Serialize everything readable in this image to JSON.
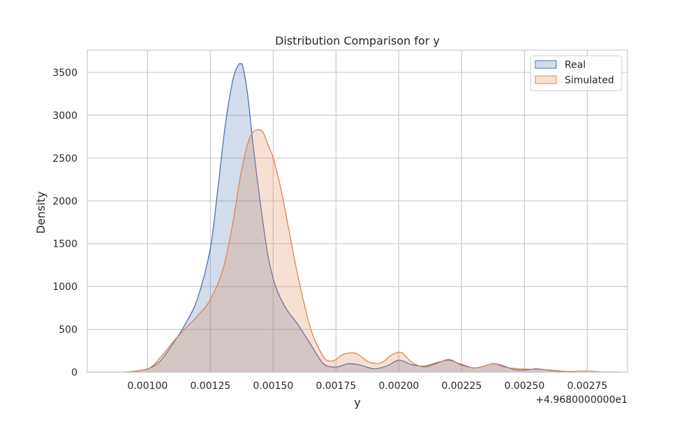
{
  "chart_data": {
    "type": "area",
    "title": "Distribution Comparison for y",
    "xlabel": "y",
    "ylabel": "Density",
    "x_offset_label": "+4.9680000000e1",
    "xlim": [
      0.00076,
      0.00291
    ],
    "ylim": [
      0,
      3760
    ],
    "x_ticks": [
      0.001,
      0.00125,
      0.0015,
      0.00175,
      0.002,
      0.00225,
      0.0025,
      0.00275
    ],
    "x_tick_labels": [
      "0.00100",
      "0.00125",
      "0.00150",
      "0.00175",
      "0.00200",
      "0.00225",
      "0.00250",
      "0.00275"
    ],
    "y_ticks": [
      0,
      500,
      1000,
      1500,
      2000,
      2500,
      3000,
      3500
    ],
    "y_tick_labels": [
      "0",
      "500",
      "1000",
      "1500",
      "2000",
      "2500",
      "3000",
      "3500"
    ],
    "grid": true,
    "legend_position": "top-right",
    "series": [
      {
        "name": "Real",
        "color": "#4c72b0",
        "fill": "#4c72b0",
        "x": [
          0.00092,
          0.001,
          0.00105,
          0.0011,
          0.00115,
          0.0012,
          0.00125,
          0.00128,
          0.00131,
          0.00134,
          0.00136,
          0.00137,
          0.00138,
          0.0014,
          0.00142,
          0.00145,
          0.00148,
          0.00151,
          0.00155,
          0.0016,
          0.00165,
          0.0017,
          0.00175,
          0.0018,
          0.00185,
          0.0019,
          0.00195,
          0.002,
          0.00205,
          0.0021,
          0.00215,
          0.0022,
          0.00225,
          0.0023,
          0.00235,
          0.00238,
          0.00242,
          0.00246,
          0.0025,
          0.00255,
          0.0026,
          0.00265,
          0.0027
        ],
        "y": [
          0,
          40,
          130,
          330,
          560,
          870,
          1450,
          2150,
          2900,
          3420,
          3580,
          3600,
          3560,
          3200,
          2650,
          1950,
          1350,
          1000,
          750,
          550,
          320,
          100,
          60,
          100,
          80,
          40,
          70,
          140,
          90,
          70,
          110,
          140,
          90,
          50,
          80,
          100,
          70,
          30,
          25,
          40,
          20,
          5,
          0
        ]
      },
      {
        "name": "Simulated",
        "color": "#dd8452",
        "fill": "#dd8452",
        "x": [
          0.0009,
          0.001,
          0.00105,
          0.0011,
          0.00115,
          0.0012,
          0.00125,
          0.0013,
          0.00134,
          0.00137,
          0.0014,
          0.00142,
          0.00144,
          0.00146,
          0.00148,
          0.0015,
          0.00153,
          0.00156,
          0.0016,
          0.00165,
          0.0017,
          0.00173,
          0.00175,
          0.00178,
          0.00183,
          0.00188,
          0.00193,
          0.00197,
          0.00201,
          0.00205,
          0.0021,
          0.00215,
          0.0022,
          0.00225,
          0.0023,
          0.00235,
          0.00238,
          0.00242,
          0.00248,
          0.00253,
          0.00258,
          0.00262,
          0.00268,
          0.00275,
          0.0028,
          0.00288
        ],
        "y": [
          0,
          40,
          170,
          350,
          510,
          660,
          850,
          1200,
          1750,
          2300,
          2680,
          2800,
          2830,
          2800,
          2650,
          2500,
          2150,
          1700,
          1100,
          500,
          180,
          130,
          150,
          210,
          220,
          120,
          110,
          200,
          230,
          120,
          60,
          100,
          150,
          80,
          50,
          80,
          100,
          60,
          40,
          35,
          30,
          20,
          10,
          15,
          5,
          0
        ]
      }
    ]
  }
}
